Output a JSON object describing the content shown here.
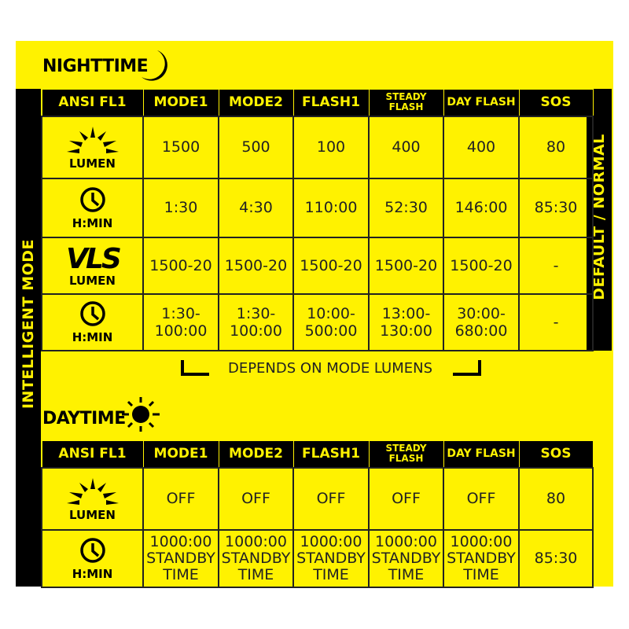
{
  "nighttime": {
    "title": "NIGHTTIME",
    "icon": "moon-icon",
    "headers": [
      "ANSI FL1",
      "MODE1",
      "MODE2",
      "FLASH1",
      "STEADY FLASH",
      "DAY FLASH",
      "SOS"
    ],
    "rows": [
      {
        "label": "LUMEN",
        "icon": "sun-rays-icon",
        "values": [
          "1500",
          "500",
          "100",
          "400",
          "400",
          "80"
        ]
      },
      {
        "label": "H:MIN",
        "icon": "clock-icon",
        "values": [
          "1:30",
          "4:30",
          "110:00",
          "52:30",
          "146:00",
          "85:30"
        ]
      },
      {
        "label": "LUMEN",
        "icon": "vls-logo-icon",
        "logo": "VLS",
        "values": [
          "1500-20",
          "1500-20",
          "1500-20",
          "1500-20",
          "1500-20",
          "-"
        ]
      },
      {
        "label": "H:MIN",
        "icon": "clock-icon",
        "values": [
          "1:30-\n100:00",
          "1:30-\n100:00",
          "10:00-\n500:00",
          "13:00-\n130:00",
          "30:00-\n680:00",
          "-"
        ]
      }
    ]
  },
  "side_left": "INTELLIGENT MODE",
  "side_right": "DEFAULT / NORMAL",
  "note": "DEPENDS ON MODE LUMENS",
  "daytime": {
    "title": "DAYTIME",
    "icon": "sun-icon",
    "headers": [
      "ANSI FL1",
      "MODE1",
      "MODE2",
      "FLASH1",
      "STEADY FLASH",
      "DAY FLASH",
      "SOS"
    ],
    "rows": [
      {
        "label": "LUMEN",
        "icon": "sun-rays-icon",
        "values": [
          "OFF",
          "OFF",
          "OFF",
          "OFF",
          "OFF",
          "80"
        ]
      },
      {
        "label": "H:MIN",
        "icon": "clock-icon",
        "values": [
          "1000:00\nSTANDBY\nTIME",
          "1000:00\nSTANDBY\nTIME",
          "1000:00\nSTANDBY\nTIME",
          "1000:00\nSTANDBY\nTIME",
          "1000:00\nSTANDBY\nTIME",
          "85:30"
        ]
      }
    ]
  },
  "colors": {
    "accent": "#fff200",
    "dark": "#000000"
  }
}
